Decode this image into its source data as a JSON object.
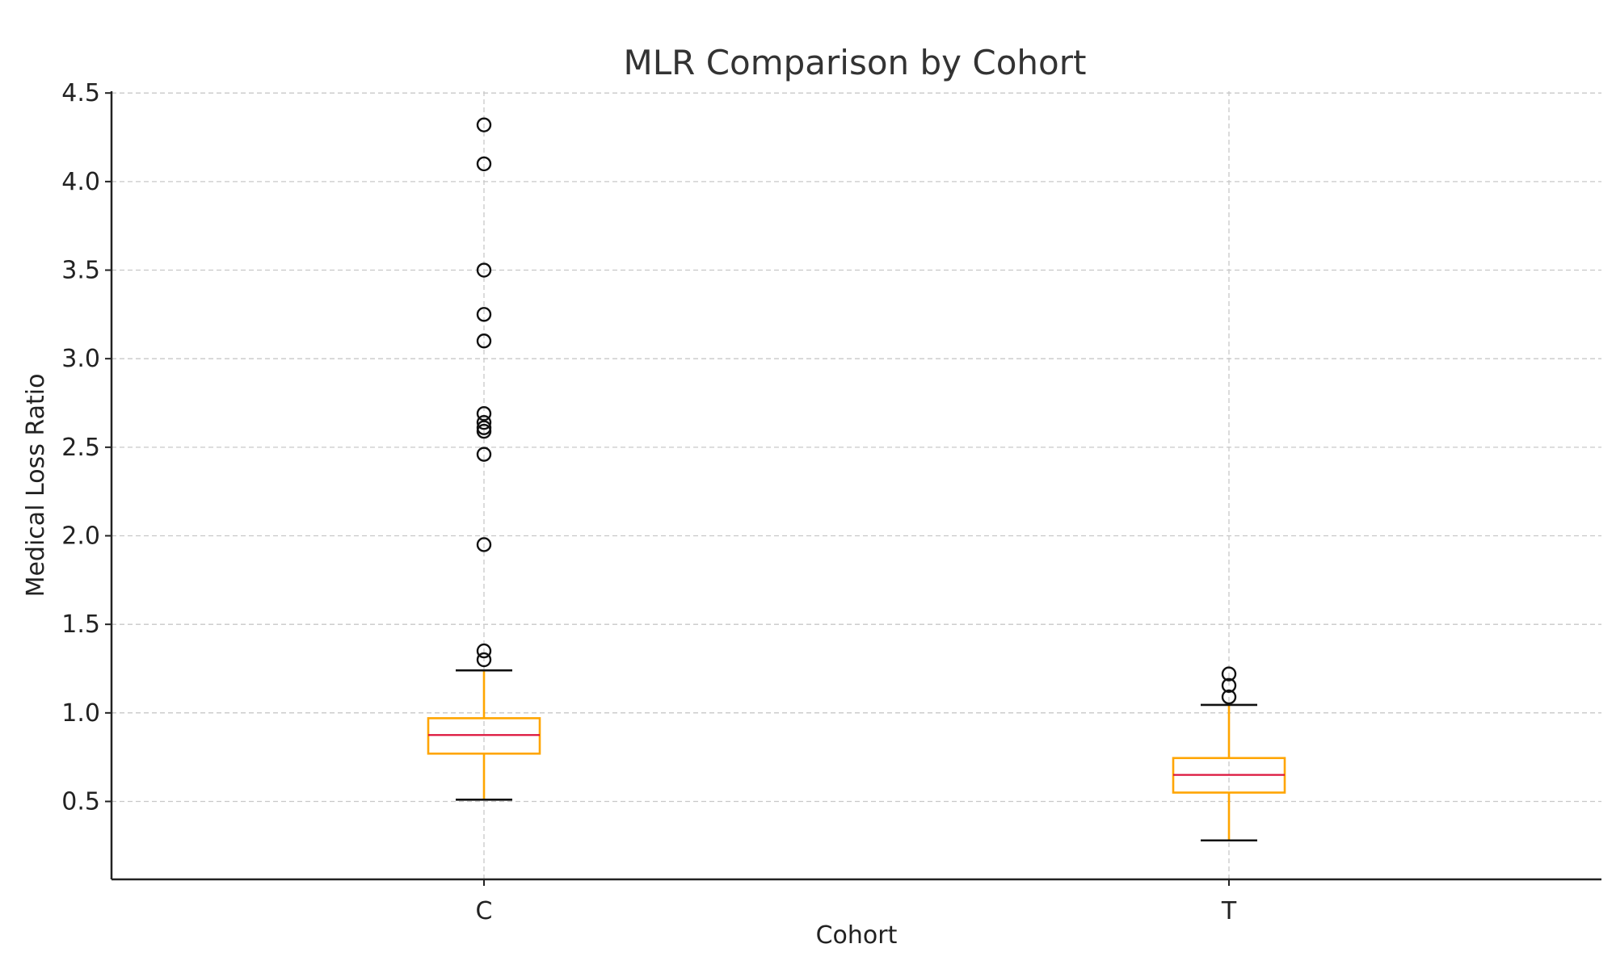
{
  "chart_data": {
    "type": "box",
    "title": "MLR Comparison by Cohort",
    "xlabel": "Cohort",
    "ylabel": "Medical Loss Ratio",
    "ylim": [
      0.06,
      4.51
    ],
    "yticks": [
      0.5,
      1.0,
      1.5,
      2.0,
      2.5,
      3.0,
      3.5,
      4.0,
      4.5
    ],
    "ytick_labels": [
      "0.5",
      "1.0",
      "1.5",
      "2.0",
      "2.5",
      "3.0",
      "3.5",
      "4.0",
      "4.5"
    ],
    "grid": true,
    "colors": {
      "box": "#FFA500",
      "whisker": "#FFA500",
      "median": "#DC143C",
      "cap": "#111111",
      "outlier": "#111111"
    },
    "categories": [
      "C",
      "T"
    ],
    "boxes": [
      {
        "category": "C",
        "whisker_low": 0.51,
        "q1": 0.77,
        "median": 0.875,
        "q3": 0.97,
        "whisker_high": 1.24,
        "outliers": [
          4.32,
          4.1,
          3.5,
          3.25,
          3.1,
          2.69,
          2.64,
          2.61,
          2.59,
          2.46,
          1.95,
          1.35,
          1.3
        ]
      },
      {
        "category": "T",
        "whisker_low": 0.28,
        "q1": 0.55,
        "median": 0.65,
        "q3": 0.745,
        "whisker_high": 1.045,
        "outliers": [
          1.22,
          1.155,
          1.09
        ]
      }
    ]
  }
}
